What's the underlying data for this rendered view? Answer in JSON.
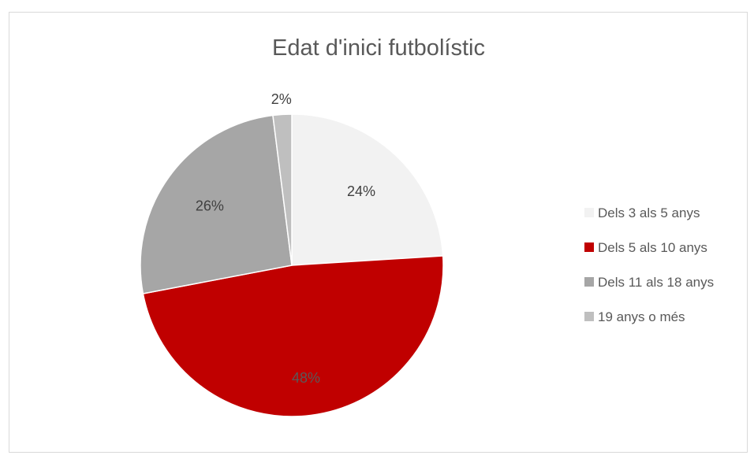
{
  "chart_data": {
    "type": "pie",
    "title": "Edat d'inici futbolístic",
    "categories": [
      "Dels 3 als 5 anys",
      "Dels 5 als 10 anys",
      "Dels 11 als 18 anys",
      "19 anys o més"
    ],
    "values": [
      24,
      48,
      26,
      2
    ],
    "labels": [
      "24%",
      "48%",
      "26%",
      "2%"
    ],
    "colors": [
      "#f2f2f2",
      "#c00000",
      "#a6a6a6",
      "#bfbfbf"
    ],
    "legend_position": "right",
    "start_angle_deg": 0,
    "direction": "clockwise"
  }
}
